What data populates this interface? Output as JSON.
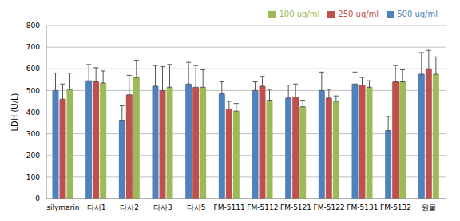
{
  "chart_data": {
    "type": "bar",
    "y_label": "LDH (U/L)",
    "categories": [
      "silymarin",
      "타사1",
      "타사2",
      "타사3",
      "타사5",
      "FM-5111",
      "FM-5112",
      "FM-5121",
      "FM-5122",
      "FM-5131",
      "FM-5132",
      "원물"
    ],
    "series": [
      {
        "name": "500 ug/ml",
        "color": "#4f81bd",
        "values": [
          500,
          545,
          360,
          520,
          530,
          485,
          500,
          465,
          500,
          530,
          315,
          575
        ],
        "errors": [
          80,
          75,
          70,
          95,
          100,
          55,
          40,
          60,
          85,
          55,
          65,
          100
        ]
      },
      {
        "name": "250 ug/ml",
        "color": "#c0504d",
        "values": [
          460,
          540,
          480,
          500,
          515,
          415,
          520,
          470,
          465,
          525,
          540,
          600
        ],
        "errors": [
          70,
          65,
          90,
          110,
          100,
          35,
          45,
          60,
          40,
          35,
          75,
          85
        ]
      },
      {
        "name": "100 ug/ml",
        "color": "#9bbb59",
        "values": [
          505,
          535,
          560,
          515,
          515,
          405,
          455,
          425,
          450,
          515,
          540,
          575
        ],
        "errors": [
          75,
          55,
          80,
          105,
          80,
          35,
          50,
          30,
          25,
          30,
          55,
          80
        ]
      }
    ],
    "ylim": [
      0,
      800
    ],
    "yticks": [
      0,
      100,
      200,
      300,
      400,
      500,
      600,
      700,
      800
    ],
    "grid": true,
    "legend": "top right"
  }
}
